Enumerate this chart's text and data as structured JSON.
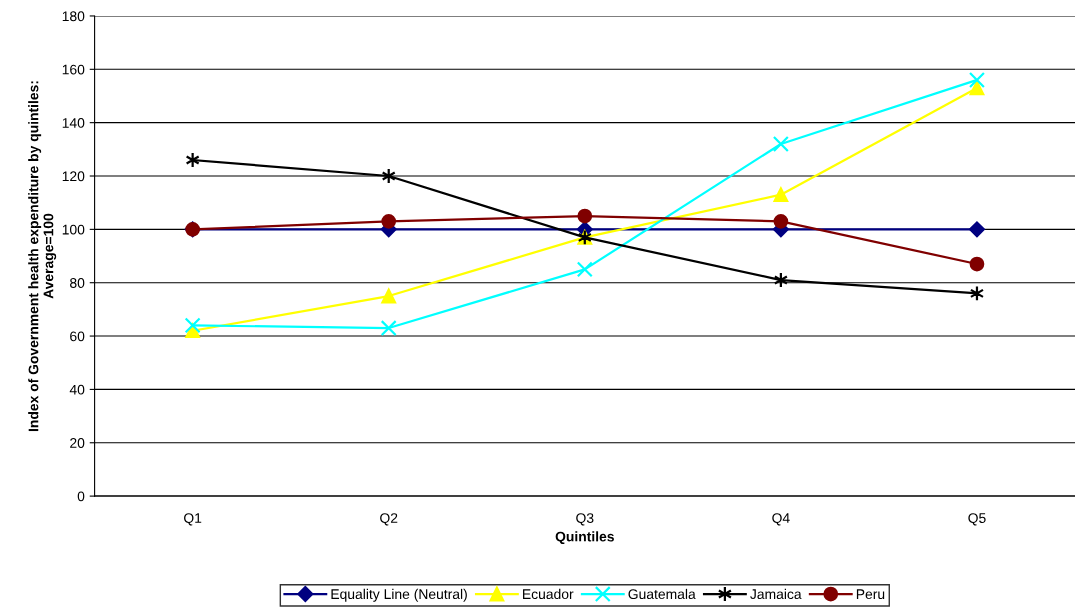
{
  "chart_data": {
    "type": "line",
    "xlabel": "Quintiles",
    "ylabel": "Index of Government health expenditure by quintiles:\nAverage=100",
    "categories": [
      "Q1",
      "Q2",
      "Q3",
      "Q4",
      "Q5"
    ],
    "series": [
      {
        "name": "Equality Line (Neutral)",
        "color": "#000080",
        "marker": "diamond",
        "values": [
          100,
          100,
          100,
          100,
          100
        ]
      },
      {
        "name": "Ecuador",
        "color": "#ffff00",
        "marker": "triangle",
        "values": [
          62,
          75,
          97,
          113,
          153
        ]
      },
      {
        "name": "Guatemala",
        "color": "#00ffff",
        "marker": "cross",
        "values": [
          64,
          63,
          85,
          132,
          156
        ]
      },
      {
        "name": "Jamaica",
        "color": "#000000",
        "marker": "cross",
        "values": [
          126,
          120,
          97,
          81,
          76
        ]
      },
      {
        "name": "Peru",
        "color": "#800000",
        "marker": "circle",
        "values": [
          100,
          103,
          105,
          103,
          87
        ]
      }
    ],
    "ylim": [
      0,
      180
    ],
    "yticks": [
      0,
      20,
      40,
      60,
      80,
      100,
      120,
      140,
      160,
      180
    ],
    "grid": "y",
    "legend": "bottom"
  }
}
